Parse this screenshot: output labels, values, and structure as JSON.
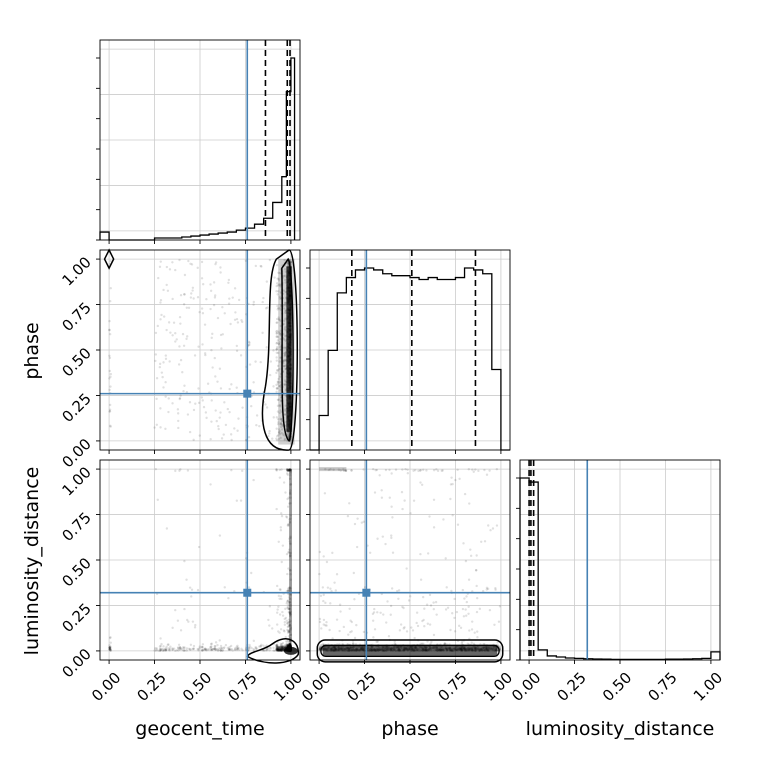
{
  "chart_data": {
    "type": "corner",
    "parameters": [
      "geocent_time",
      "phase",
      "luminosity_distance"
    ],
    "axis_range": [
      -0.05,
      1.05
    ],
    "tick_values": [
      0.0,
      0.25,
      0.5,
      0.75,
      1.0
    ],
    "tick_labels": [
      "0.00",
      "0.25",
      "0.50",
      "0.75",
      "1.00"
    ],
    "truths": {
      "geocent_time": 0.76,
      "phase": 0.26,
      "luminosity_distance": 0.32
    },
    "truth_color": "#4682b4",
    "quantiles": {
      "geocent_time": [
        0.86,
        0.98,
        0.995
      ],
      "phase": [
        0.18,
        0.51,
        0.86
      ],
      "luminosity_distance": [
        0.0,
        0.01,
        0.025
      ]
    },
    "histograms": {
      "geocent_time": {
        "bin_edges": [
          -0.05,
          0.0,
          0.05,
          0.1,
          0.15,
          0.2,
          0.25,
          0.3,
          0.35,
          0.4,
          0.45,
          0.5,
          0.55,
          0.6,
          0.65,
          0.7,
          0.75,
          0.8,
          0.85,
          0.9,
          0.95,
          0.975,
          1.0,
          1.02
        ],
        "counts": [
          0.04,
          0.0,
          0.0,
          0.0,
          0.0,
          0.0,
          0.01,
          0.01,
          0.01,
          0.015,
          0.02,
          0.025,
          0.03,
          0.035,
          0.04,
          0.05,
          0.06,
          0.08,
          0.11,
          0.19,
          0.32,
          0.75,
          0.92
        ]
      },
      "phase": {
        "bin_edges": [
          -0.05,
          0.0,
          0.05,
          0.1,
          0.15,
          0.2,
          0.25,
          0.3,
          0.35,
          0.4,
          0.45,
          0.5,
          0.55,
          0.6,
          0.65,
          0.7,
          0.75,
          0.8,
          0.85,
          0.9,
          0.95,
          1.0,
          1.05
        ],
        "counts": [
          0.0,
          0.18,
          0.52,
          0.82,
          0.9,
          0.94,
          0.95,
          0.94,
          0.92,
          0.91,
          0.91,
          0.9,
          0.89,
          0.9,
          0.89,
          0.89,
          0.9,
          0.95,
          0.94,
          0.92,
          0.42,
          0.0
        ]
      },
      "luminosity_distance": {
        "bin_edges": [
          -0.05,
          0.0,
          0.05,
          0.1,
          0.15,
          0.2,
          0.25,
          0.3,
          0.35,
          0.4,
          0.45,
          0.5,
          0.55,
          0.6,
          0.65,
          0.7,
          0.75,
          0.8,
          0.85,
          0.9,
          0.95,
          1.0,
          1.05
        ],
        "counts": [
          0.9,
          0.88,
          0.05,
          0.02,
          0.015,
          0.01,
          0.008,
          0.006,
          0.005,
          0.004,
          0.003,
          0.003,
          0.003,
          0.003,
          0.003,
          0.003,
          0.004,
          0.004,
          0.005,
          0.006,
          0.008,
          0.04
        ]
      }
    },
    "scatter_panels": [
      {
        "x": "geocent_time",
        "y": "phase"
      },
      {
        "x": "geocent_time",
        "y": "luminosity_distance"
      },
      {
        "x": "phase",
        "y": "luminosity_distance"
      }
    ]
  }
}
